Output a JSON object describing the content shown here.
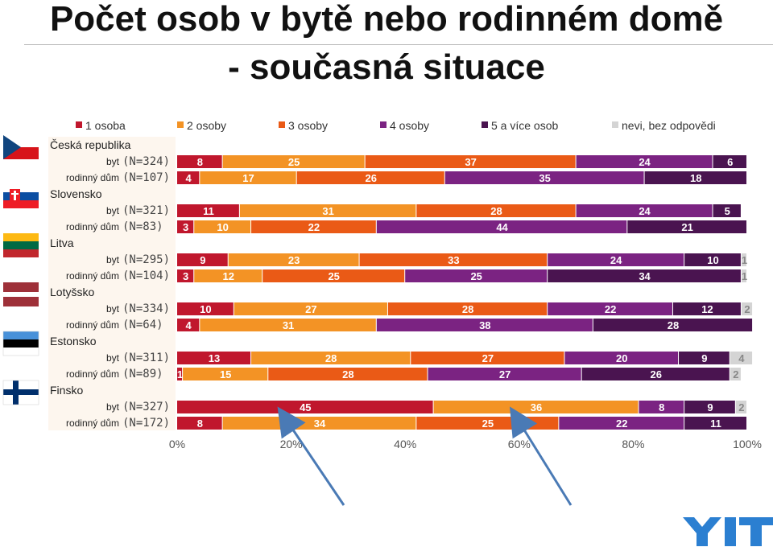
{
  "page": {
    "title_line1": "Počet osob v bytě nebo rodinném domě",
    "title_line2": "- současná situace"
  },
  "chart_data": {
    "type": "bar",
    "orientation": "horizontal-stacked-100",
    "legend": {
      "placement": "top",
      "entries": [
        "1 osoba",
        "2 osoby",
        "3 osoby",
        "4 osoby",
        "5 a více osob",
        "nevi, bez odpovědi"
      ]
    },
    "colors": [
      "#c0172d",
      "#f39325",
      "#ea5a16",
      "#7b2382",
      "#4a1450",
      "#d4d4d4"
    ],
    "x_ticks": [
      "0%",
      "20%",
      "40%",
      "60%",
      "80%",
      "100%"
    ],
    "xlim": [
      0,
      100
    ],
    "groups": [
      {
        "name": "Česká republika",
        "flag": "czech-flag",
        "rows": [
          {
            "label": "byt",
            "n": "(N=324)",
            "values": [
              8,
              25,
              37,
              24,
              6,
              0
            ]
          },
          {
            "label": "rodinný dům",
            "n": "(N=107)",
            "values": [
              4,
              17,
              26,
              35,
              18,
              0
            ]
          }
        ]
      },
      {
        "name": "Slovensko",
        "flag": "slovak-flag",
        "rows": [
          {
            "label": "byt",
            "n": "(N=321)",
            "values": [
              11,
              31,
              28,
              24,
              5,
              0
            ]
          },
          {
            "label": "rodinný dům",
            "n": "(N=83)",
            "values": [
              3,
              10,
              22,
              44,
              21,
              0
            ]
          }
        ]
      },
      {
        "name": "Litva",
        "flag": "lithuanian-flag",
        "rows": [
          {
            "label": "byt",
            "n": "(N=295)",
            "values": [
              9,
              23,
              33,
              24,
              10,
              1
            ]
          },
          {
            "label": "rodinný dům",
            "n": "(N=104)",
            "values": [
              3,
              12,
              25,
              25,
              34,
              1
            ]
          }
        ]
      },
      {
        "name": "Lotyšsko",
        "flag": "latvian-flag",
        "rows": [
          {
            "label": "byt",
            "n": "(N=334)",
            "values": [
              10,
              27,
              28,
              22,
              12,
              2
            ]
          },
          {
            "label": "rodinný dům",
            "n": "(N=64)",
            "values": [
              4,
              31,
              0,
              38,
              28,
              0
            ]
          }
        ]
      },
      {
        "name": "Estonsko",
        "flag": "estonian-flag",
        "rows": [
          {
            "label": "byt",
            "n": "(N=311)",
            "values": [
              13,
              28,
              27,
              20,
              9,
              4
            ]
          },
          {
            "label": "rodinný dům",
            "n": "(N=89)",
            "values": [
              1,
              15,
              28,
              27,
              26,
              2
            ]
          }
        ]
      },
      {
        "name": "Finsko",
        "flag": "finnish-flag",
        "rows": [
          {
            "label": "byt",
            "n": "(N=327)",
            "values": [
              45,
              36,
              0,
              8,
              9,
              2
            ]
          },
          {
            "label": "rodinný dům",
            "n": "(N=172)",
            "values": [
              8,
              34,
              25,
              22,
              11,
              0
            ]
          }
        ]
      }
    ],
    "annotations": [
      {
        "type": "arrow",
        "target_percent": 20,
        "color": "#4a7ab5"
      },
      {
        "type": "arrow",
        "target_percent": 59,
        "color": "#4a7ab5"
      }
    ]
  },
  "logo": {
    "name": "yit-logo",
    "color": "#2b7fd1"
  }
}
